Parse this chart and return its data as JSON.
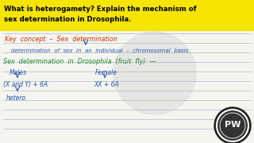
{
  "bg_color": "#f5f5f0",
  "title_line1": "What is heterogamety? Explain the mechanism of",
  "title_line2": "sex determination in Drosophila.",
  "title_text_color": "#000000",
  "title_bg": "#f5f5f0",
  "line1_text": "Key  concept  –  Sex  determination",
  "line2_text": "determination  of  sex  in  an  individual  –  chromosomal  basis",
  "line3_text": "Sex  determination  in  Drosophila  (fruit  fly)  —",
  "col1_header": "Males",
  "col2_header": "Female",
  "col1_val": "(X and Y) + 6A",
  "col2_val": "XX + 6A",
  "col1_sub": "hetero",
  "blue_color": "#2255aa",
  "red_color": "#cc3300",
  "green_color": "#228833",
  "line_color": "#aabbcc",
  "logo_bg": "#333333",
  "logo_ring": "#aaaaaa",
  "watermark_color": "#cccccc"
}
